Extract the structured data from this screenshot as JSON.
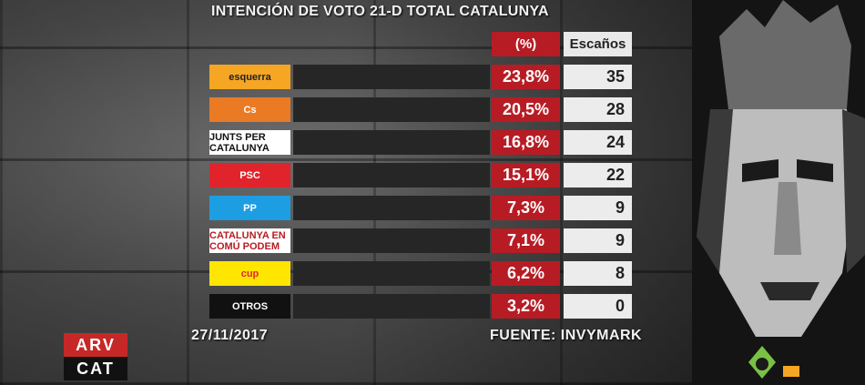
{
  "title": "INTENCIÓN DE VOTO 21-D TOTAL CATALUNYA",
  "headers": {
    "pct": "(%)",
    "seats": "Escaños"
  },
  "footer": {
    "date": "27/11/2017",
    "source": "FUENTE: INVYMARK"
  },
  "brand": {
    "top": "ARV",
    "bottom": "CAT"
  },
  "parties": [
    {
      "logo": "esquerra",
      "logo_bg": "#f5a623",
      "logo_fg": "#222",
      "pct": "23,8%",
      "seats": "35"
    },
    {
      "logo": "Cs",
      "logo_bg": "#eb7a24",
      "logo_fg": "#fff",
      "pct": "20,5%",
      "seats": "28"
    },
    {
      "logo": "JUNTS PER CATALUNYA",
      "logo_bg": "#ffffff",
      "logo_fg": "#111",
      "pct": "16,8%",
      "seats": "24"
    },
    {
      "logo": "PSC",
      "logo_bg": "#e1242b",
      "logo_fg": "#fff",
      "pct": "15,1%",
      "seats": "22"
    },
    {
      "logo": "PP",
      "logo_bg": "#1d9ee2",
      "logo_fg": "#fff",
      "pct": "7,3%",
      "seats": "9"
    },
    {
      "logo": "CATALUNYA EN COMÚ PODEM",
      "logo_bg": "#ffffff",
      "logo_fg": "#b71c24",
      "pct": "7,1%",
      "seats": "9"
    },
    {
      "logo": "cup",
      "logo_bg": "#ffe600",
      "logo_fg": "#e1242b",
      "pct": "6,2%",
      "seats": "8"
    },
    {
      "logo": "OTROS",
      "logo_bg": "#111111",
      "logo_fg": "#ffffff",
      "pct": "3,2%",
      "seats": "0"
    }
  ],
  "chart_data": {
    "type": "table",
    "title": "INTENCIÓN DE VOTO 21-D TOTAL CATALUNYA",
    "columns": [
      "(%)",
      "Escaños"
    ],
    "rows": [
      {
        "party": "esquerra",
        "pct": 23.8,
        "seats": 35
      },
      {
        "party": "Cs",
        "pct": 20.5,
        "seats": 28
      },
      {
        "party": "JUNTS PER CATALUNYA",
        "pct": 16.8,
        "seats": 24
      },
      {
        "party": "PSC",
        "pct": 15.1,
        "seats": 22
      },
      {
        "party": "PP",
        "pct": 7.3,
        "seats": 9
      },
      {
        "party": "CATALUNYA EN COMÚ PODEM",
        "pct": 7.1,
        "seats": 9
      },
      {
        "party": "cup",
        "pct": 6.2,
        "seats": 8
      },
      {
        "party": "OTROS",
        "pct": 3.2,
        "seats": 0
      }
    ]
  }
}
